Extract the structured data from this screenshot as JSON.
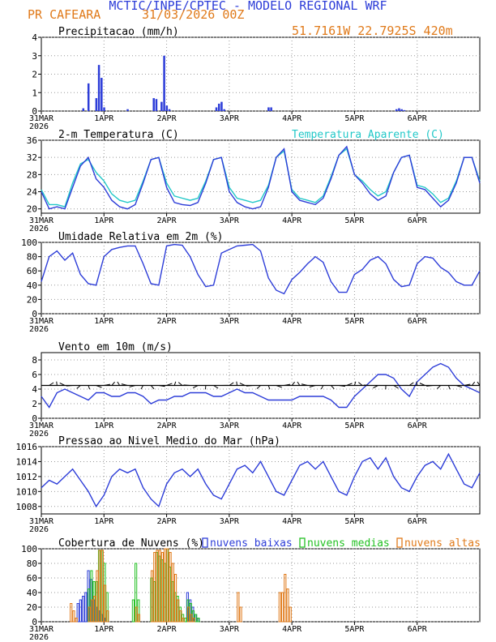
{
  "header": {
    "title": "MCTIC/INPE/CPTEC - MODELO REGIONAL WRF",
    "location": "PR CAFEARA",
    "date": "31/03/2026 00Z",
    "coords": "51.7161W 22.7925S 420m"
  },
  "colors": {
    "title": "#2d3dd8",
    "orange": "#e07a1a",
    "blue": "#2d3dd8",
    "cyan": "#22c8c8",
    "green": "#22c022",
    "arrow": "#000000"
  },
  "x_axis": {
    "hours": [
      0,
      24,
      48,
      72,
      96,
      120,
      144
    ],
    "labels": [
      "31MAR",
      "1APR",
      "2APR",
      "3APR",
      "4APR",
      "5APR",
      "6APR"
    ],
    "year": "2026",
    "range": [
      0,
      168
    ]
  },
  "chart_data": [
    {
      "id": "precip",
      "type": "bar",
      "title": "Precipitacao (mm/h)",
      "ylim": [
        0,
        4
      ],
      "yticks": [
        0,
        1,
        2,
        3,
        4
      ],
      "x": [
        16,
        18,
        21,
        22,
        23,
        24,
        33,
        43,
        44,
        46,
        47,
        48,
        49,
        67,
        68,
        69,
        70,
        87,
        88,
        136,
        137,
        138,
        139
      ],
      "values": [
        0.15,
        1.5,
        0.7,
        2.5,
        1.8,
        0.2,
        0.1,
        0.7,
        0.65,
        0.5,
        3.0,
        0.3,
        0.1,
        0.2,
        0.4,
        0.5,
        0.1,
        0.2,
        0.2,
        0.1,
        0.15,
        0.1,
        0.05
      ]
    },
    {
      "id": "temp",
      "type": "line",
      "title": "2-m Temperatura (C)",
      "legend": "Temperatura Aparente (C)",
      "ylim": [
        19,
        36
      ],
      "yticks": [
        20,
        24,
        28,
        32,
        36
      ],
      "x": [
        0,
        3,
        6,
        9,
        12,
        15,
        18,
        21,
        24,
        27,
        30,
        33,
        36,
        39,
        42,
        45,
        48,
        51,
        54,
        57,
        60,
        63,
        66,
        69,
        72,
        75,
        78,
        81,
        84,
        87,
        90,
        93,
        96,
        99,
        102,
        105,
        108,
        111,
        114,
        117,
        120,
        123,
        126,
        129,
        132,
        135,
        138,
        141,
        144,
        147,
        150,
        153,
        156,
        159,
        162,
        165,
        168
      ],
      "series": [
        {
          "name": "Temperatura",
          "values": [
            24,
            20,
            20.5,
            20,
            25,
            30,
            32,
            27,
            25,
            22,
            20.5,
            20,
            21,
            26,
            31.5,
            32,
            25,
            21.5,
            21,
            20.8,
            21.5,
            26,
            31.5,
            32,
            24,
            21.5,
            20.5,
            20,
            20.5,
            25,
            32,
            34,
            24,
            22,
            21.5,
            21,
            22.5,
            27,
            32.5,
            34.5,
            28,
            26,
            23.5,
            22,
            23,
            28.5,
            32,
            32.5,
            25,
            24.5,
            22.5,
            20.5,
            22,
            26,
            32,
            32,
            26
          ]
        },
        {
          "name": "Temperatura Aparente",
          "values": [
            24.5,
            21,
            21,
            20.5,
            26,
            30.5,
            31.5,
            28.5,
            26.5,
            23.5,
            22,
            21.5,
            22,
            26.5,
            31.5,
            32,
            26,
            23,
            22.5,
            22,
            22.5,
            26.5,
            31.5,
            32,
            25,
            22.5,
            22,
            21.5,
            22,
            25.5,
            32,
            33.5,
            24.5,
            22.5,
            22,
            21.5,
            23,
            27.5,
            32.5,
            34,
            28,
            26.5,
            24.5,
            23,
            24,
            28.5,
            32,
            32.5,
            25.5,
            25,
            23.5,
            21.5,
            22.5,
            26.5,
            32,
            32,
            26.5
          ]
        }
      ]
    },
    {
      "id": "rh",
      "type": "line",
      "title": "Umidade Relativa em 2m (%)",
      "ylim": [
        0,
        100
      ],
      "yticks": [
        0,
        20,
        40,
        60,
        80,
        100
      ],
      "x": [
        0,
        3,
        6,
        9,
        12,
        15,
        18,
        21,
        24,
        27,
        30,
        33,
        36,
        39,
        42,
        45,
        48,
        51,
        54,
        57,
        60,
        63,
        66,
        69,
        72,
        75,
        78,
        81,
        84,
        87,
        90,
        93,
        96,
        99,
        102,
        105,
        108,
        111,
        114,
        117,
        120,
        123,
        126,
        129,
        132,
        135,
        138,
        141,
        144,
        147,
        150,
        153,
        156,
        159,
        162,
        165,
        168
      ],
      "series": [
        {
          "name": "Umidade",
          "values": [
            45,
            80,
            88,
            75,
            85,
            55,
            42,
            40,
            80,
            90,
            93,
            95,
            95,
            70,
            42,
            40,
            95,
            97,
            96,
            80,
            55,
            38,
            40,
            85,
            90,
            95,
            96,
            97,
            88,
            50,
            33,
            28,
            48,
            58,
            70,
            80,
            72,
            45,
            30,
            30,
            55,
            62,
            75,
            80,
            70,
            48,
            38,
            40,
            70,
            80,
            78,
            65,
            58,
            45,
            40,
            40,
            60
          ]
        }
      ]
    },
    {
      "id": "wind",
      "type": "line",
      "title": "Vento em 10m (m/s)",
      "ylim": [
        0,
        9
      ],
      "yticks": [
        0,
        2,
        4,
        6,
        8
      ],
      "x": [
        0,
        3,
        6,
        9,
        12,
        15,
        18,
        21,
        24,
        27,
        30,
        33,
        36,
        39,
        42,
        45,
        48,
        51,
        54,
        57,
        60,
        63,
        66,
        69,
        72,
        75,
        78,
        81,
        84,
        87,
        90,
        93,
        96,
        99,
        102,
        105,
        108,
        111,
        114,
        117,
        120,
        123,
        126,
        129,
        132,
        135,
        138,
        141,
        144,
        147,
        150,
        153,
        156,
        159,
        162,
        165,
        168
      ],
      "series": [
        {
          "name": "Vento",
          "values": [
            3,
            1.5,
            3.5,
            4,
            3.5,
            3,
            2.5,
            3.5,
            3.5,
            3,
            3,
            3.5,
            3.5,
            3,
            2,
            2.5,
            2.5,
            3,
            3,
            3.5,
            3.5,
            3.5,
            3,
            3,
            3.5,
            4,
            3.5,
            3.5,
            3,
            2.5,
            2.5,
            2.5,
            2.5,
            3,
            3,
            3,
            3,
            2.5,
            1.5,
            1.5,
            3,
            4,
            5,
            6,
            6,
            5.5,
            4,
            3,
            5,
            6,
            7,
            7.5,
            7,
            5.5,
            4.5,
            4,
            3.5
          ]
        }
      ],
      "barbs_y": 4.5
    },
    {
      "id": "slp",
      "type": "line",
      "title": "Pressao ao Nivel Medio do Mar (hPa)",
      "ylim": [
        1007,
        1016
      ],
      "yticks": [
        1008,
        1010,
        1012,
        1014,
        1016
      ],
      "x": [
        0,
        3,
        6,
        9,
        12,
        15,
        18,
        21,
        24,
        27,
        30,
        33,
        36,
        39,
        42,
        45,
        48,
        51,
        54,
        57,
        60,
        63,
        66,
        69,
        72,
        75,
        78,
        81,
        84,
        87,
        90,
        93,
        96,
        99,
        102,
        105,
        108,
        111,
        114,
        117,
        120,
        123,
        126,
        129,
        132,
        135,
        138,
        141,
        144,
        147,
        150,
        153,
        156,
        159,
        162,
        165,
        168
      ],
      "series": [
        {
          "name": "Pressao",
          "values": [
            1010.5,
            1011.5,
            1011,
            1012,
            1013,
            1011.5,
            1010,
            1008,
            1009.5,
            1012,
            1013,
            1012.5,
            1013,
            1010.5,
            1009,
            1008,
            1011,
            1012.5,
            1013,
            1012,
            1013,
            1011,
            1009.5,
            1009,
            1011,
            1013,
            1013.5,
            1012.5,
            1014,
            1012,
            1010,
            1009.5,
            1011.5,
            1013.5,
            1014,
            1013,
            1014,
            1012,
            1010,
            1009.5,
            1012,
            1014,
            1014.5,
            1013,
            1014.5,
            1012,
            1010.5,
            1010,
            1012,
            1013.5,
            1014,
            1013,
            1015,
            1013,
            1011,
            1010.5,
            1012.5
          ]
        }
      ]
    },
    {
      "id": "clouds",
      "type": "bar",
      "title": "Cobertura de Nuvens (%)",
      "legend": [
        "nuvens baixas",
        "nuvens medias",
        "nuvens altas"
      ],
      "ylim": [
        0,
        100
      ],
      "yticks": [
        0,
        20,
        40,
        60,
        80,
        100
      ],
      "x": [
        11,
        12,
        13,
        14,
        15,
        16,
        17,
        18,
        19,
        20,
        21,
        22,
        23,
        24,
        25,
        26,
        27,
        28,
        29,
        30,
        31,
        32,
        33,
        34,
        35,
        36,
        37,
        38,
        39,
        40,
        41,
        42,
        43,
        44,
        45,
        46,
        47,
        48,
        49,
        50,
        51,
        52,
        53,
        54,
        55,
        56,
        57,
        58,
        59,
        60,
        61,
        62,
        63,
        64,
        65,
        66,
        67,
        68,
        69,
        70,
        71,
        72,
        73,
        74,
        75,
        76,
        77,
        78,
        79,
        80,
        81,
        82,
        83,
        84,
        85,
        86,
        87,
        88,
        89,
        90,
        91,
        92,
        93,
        94,
        95,
        96
      ],
      "series": [
        {
          "name": "nuvens baixas",
          "values": [
            0,
            0,
            0,
            25,
            30,
            35,
            40,
            70,
            58,
            30,
            20,
            15,
            10,
            5,
            0,
            0,
            0,
            0,
            0,
            0,
            0,
            0,
            0,
            0,
            0,
            0,
            0,
            0,
            0,
            0,
            0,
            0,
            0,
            0,
            0,
            0,
            0,
            0,
            0,
            0,
            0,
            0,
            0,
            0,
            0,
            40,
            30,
            20,
            10,
            5,
            0,
            0,
            0,
            0,
            0,
            0,
            0,
            0,
            0,
            0,
            0,
            0,
            0,
            0,
            0,
            0,
            0,
            0,
            0,
            0,
            0,
            0,
            0,
            0,
            0,
            0,
            0,
            0,
            0,
            0,
            0,
            0,
            0,
            0,
            0,
            0
          ]
        },
        {
          "name": "nuvens medias",
          "values": [
            0,
            0,
            0,
            0,
            0,
            0,
            0,
            45,
            70,
            55,
            55,
            98,
            98,
            80,
            40,
            0,
            0,
            0,
            0,
            0,
            0,
            0,
            0,
            0,
            30,
            80,
            30,
            0,
            0,
            0,
            0,
            60,
            55,
            95,
            90,
            85,
            80,
            100,
            75,
            55,
            40,
            35,
            20,
            10,
            5,
            30,
            25,
            15,
            10,
            5,
            0,
            0,
            0,
            0,
            0,
            0,
            0,
            0,
            0,
            0,
            0,
            0,
            0,
            0,
            0,
            0,
            0,
            0,
            0,
            0,
            0,
            0,
            0,
            0,
            0,
            0,
            0,
            0,
            0,
            0,
            0,
            0,
            0,
            0,
            0,
            0
          ]
        },
        {
          "name": "nuvens altas",
          "values": [
            25,
            15,
            5,
            0,
            0,
            0,
            0,
            20,
            30,
            35,
            70,
            98,
            98,
            50,
            15,
            0,
            0,
            0,
            0,
            0,
            0,
            0,
            0,
            0,
            0,
            20,
            10,
            0,
            0,
            0,
            0,
            70,
            95,
            98,
            98,
            95,
            100,
            100,
            95,
            80,
            65,
            30,
            15,
            5,
            0,
            20,
            10,
            5,
            0,
            0,
            0,
            0,
            0,
            0,
            0,
            0,
            0,
            0,
            0,
            0,
            0,
            0,
            0,
            0,
            40,
            20,
            0,
            0,
            0,
            0,
            0,
            0,
            0,
            0,
            0,
            0,
            0,
            0,
            0,
            0,
            40,
            40,
            65,
            45,
            20,
            0
          ]
        }
      ]
    }
  ]
}
